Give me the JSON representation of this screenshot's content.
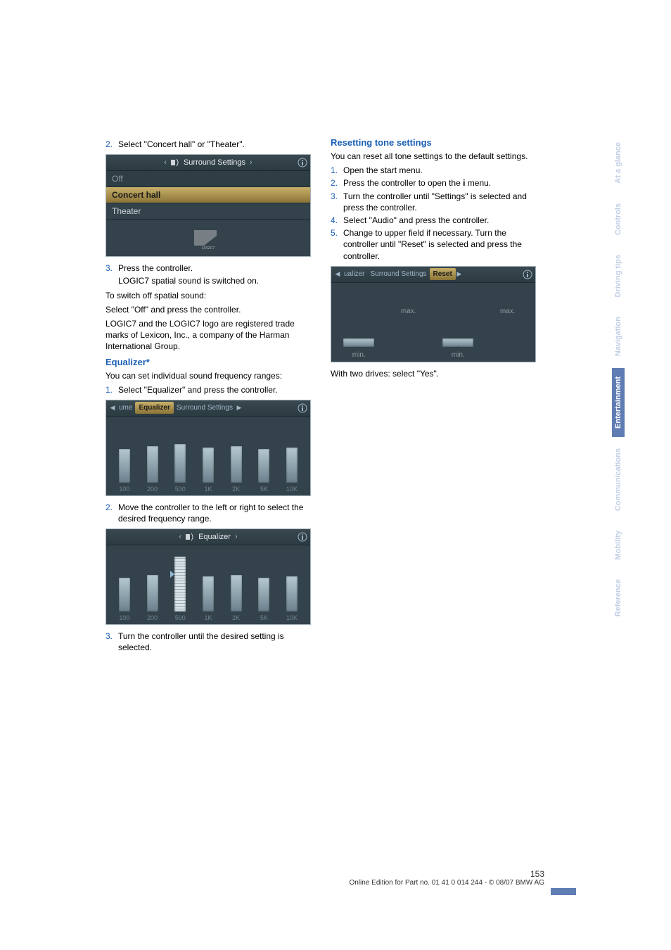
{
  "left": {
    "step2": "Select \"Concert hall\" or \"Theater\".",
    "surround": {
      "header_prefix": "‹",
      "header_text": "Surround Settings",
      "header_suffix": "›",
      "rows": [
        "Off",
        "Concert hall",
        "Theater"
      ],
      "logo_text": "LOGIC7"
    },
    "step3": "Press the controller.",
    "step3_sub": "LOGIC7 spatial sound is switched on.",
    "spatial_off_1": "To switch off spatial sound:",
    "spatial_off_2": "Select \"Off\" and press the controller.",
    "logic7_trademark": "LOGIC7 and the LOGIC7 logo are registered trade marks of Lexicon, Inc., a company of the Harman International Group.",
    "eq_heading": "Equalizer*",
    "eq_intro": "You can set individual sound frequency ranges:",
    "eq_step1": "Select \"Equalizer\" and press the controller.",
    "eq_tabs": {
      "left": "ume",
      "active": "Equalizer",
      "right": "Surround Settings"
    },
    "eq_bands": [
      "100",
      "200",
      "500",
      "1K",
      "2K",
      "5K",
      "10K"
    ],
    "eq_heights": [
      48,
      52,
      55,
      50,
      52,
      48,
      50
    ],
    "eq_step2": "Move the controller to the left or right to select the desired frequency range.",
    "eq_detail_header": "Equalizer",
    "eq_detail_heights": [
      48,
      52,
      78,
      50,
      52,
      48,
      50
    ],
    "eq_step3": "Turn the controller until the desired setting is selected."
  },
  "right": {
    "reset_heading": "Resetting tone settings",
    "reset_intro": "You can reset all tone settings to the default settings.",
    "r1": "Open the start menu.",
    "r2_a": "Press the controller to open the ",
    "r2_b": " menu.",
    "r3": "Turn the controller until \"Settings\" is selected and press the controller.",
    "r4": "Select \"Audio\" and press the controller.",
    "r5": "Change to upper field if necessary. Turn the controller until \"Reset\" is selected and press the controller.",
    "reset_tabs": {
      "left": "ualizer",
      "mid": "Surround Settings",
      "active": "Reset"
    },
    "reset_labels": [
      "min.",
      "max.",
      "min.",
      "max."
    ],
    "with_two": "With two drives: select \"Yes\"."
  },
  "sidebar": [
    "At a glance",
    "Controls",
    "Driving tips",
    "Navigation",
    "Entertainment",
    "Communications",
    "Mobility",
    "Reference"
  ],
  "sidebar_active_index": 4,
  "footer": {
    "page": "153",
    "line": "Online Edition for Part no. 01 41 0 014 244 - © 08/07 BMW AG"
  },
  "colors": {
    "heading_blue": "#1a5fb4",
    "sidebar_active_bg": "#5f7db3"
  }
}
